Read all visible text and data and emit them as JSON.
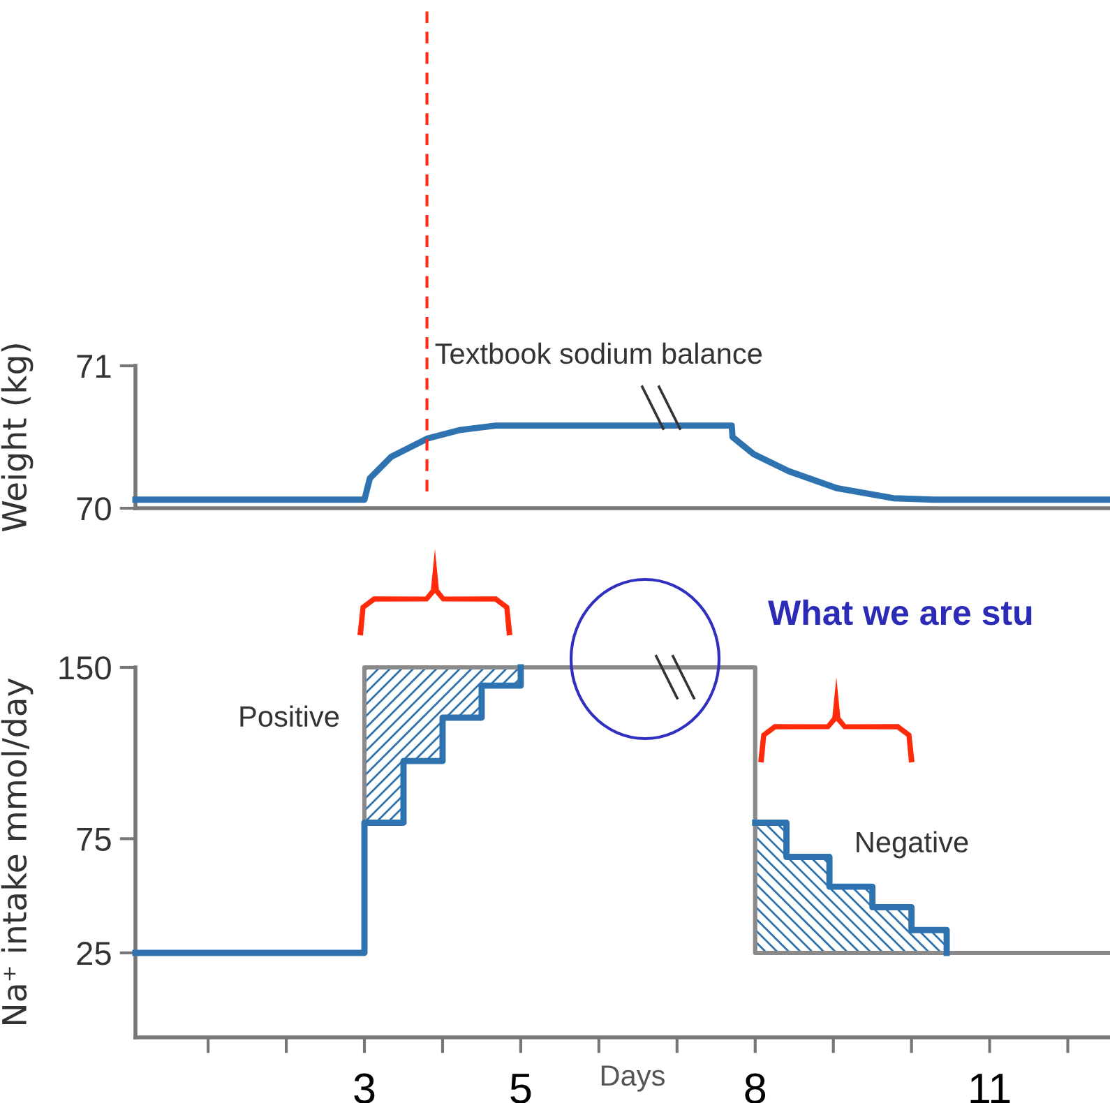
{
  "chart_data": [
    {
      "type": "line",
      "ylabel": "Weight (kg)",
      "xlim": [
        0.07,
        12.54
      ],
      "ylim": [
        70,
        71
      ],
      "yticks": [
        70,
        71
      ],
      "tick_labels": "y",
      "grid": false,
      "series": [
        {
          "color": "#2f72b0",
          "x": [
            0.07,
            3,
            3.07,
            3.34,
            3.81,
            4.23,
            4.68,
            7.7,
            7.71,
            7.98,
            8.43,
            9.05,
            9.77,
            10.3,
            12.54
          ],
          "values": [
            70.06,
            70.06,
            70.21,
            70.36,
            70.49,
            70.55,
            70.58,
            70.58,
            70.5,
            70.38,
            70.26,
            70.14,
            70.07,
            70.06,
            70.06
          ]
        }
      ],
      "ref_lines": [
        {
          "axis": "x",
          "value": 3.8,
          "label": "Textbook sodium balance",
          "color": "#ff2a1a",
          "line_style": "dashed"
        }
      ]
    },
    {
      "type": "line",
      "xlabel": "Days",
      "ylabel": "Na⁺ intake mmol/day",
      "xlim": [
        0.07,
        12.54
      ],
      "ylim": [
        -12,
        150
      ],
      "yticks": [
        25,
        75,
        150
      ],
      "xticks": [
        {
          "value": 1,
          "label": null
        },
        {
          "value": 2,
          "label": null
        },
        3,
        {
          "value": 4,
          "label": null
        },
        5,
        {
          "value": 6,
          "label": null
        },
        {
          "value": 7,
          "label": null
        },
        8,
        {
          "value": 9,
          "label": null
        },
        {
          "value": 10,
          "label": null
        },
        11,
        {
          "value": 12,
          "label": null
        }
      ],
      "grid": false,
      "series": [
        {
          "color": "#8a8a8a",
          "x": [
            0.07,
            3,
            3,
            8,
            8,
            12.54
          ],
          "values": [
            25,
            25,
            150,
            150,
            25,
            25
          ]
        },
        {
          "color": "#2f72b0",
          "x": [
            0.07,
            3,
            3,
            3.5,
            3.5,
            4,
            4,
            4.5,
            4.5,
            5,
            5
          ],
          "values": [
            25,
            25,
            82,
            82,
            109,
            109,
            128,
            128,
            142,
            142,
            150
          ],
          "lower": [
            null,
            null,
            82,
            82,
            109,
            109,
            128,
            128,
            142,
            142,
            150
          ],
          "upper": [
            null,
            null,
            150,
            150,
            150,
            150,
            150,
            150,
            150,
            150,
            150
          ]
        },
        {
          "color": "#2f72b0",
          "x": [
            8,
            8.4,
            8.4,
            8.95,
            8.95,
            9.5,
            9.5,
            10,
            10,
            10.45,
            10.45
          ],
          "values": [
            82,
            82,
            67,
            67,
            54,
            54,
            45,
            45,
            35,
            35,
            25
          ],
          "lower": [
            25,
            25,
            25,
            25,
            25,
            25,
            25,
            25,
            25,
            25,
            25
          ],
          "upper": [
            82,
            82,
            67,
            67,
            54,
            54,
            45,
            45,
            35,
            35,
            25
          ]
        }
      ],
      "annotations": [
        "Positive",
        "Negative",
        "What we are stu"
      ]
    }
  ]
}
